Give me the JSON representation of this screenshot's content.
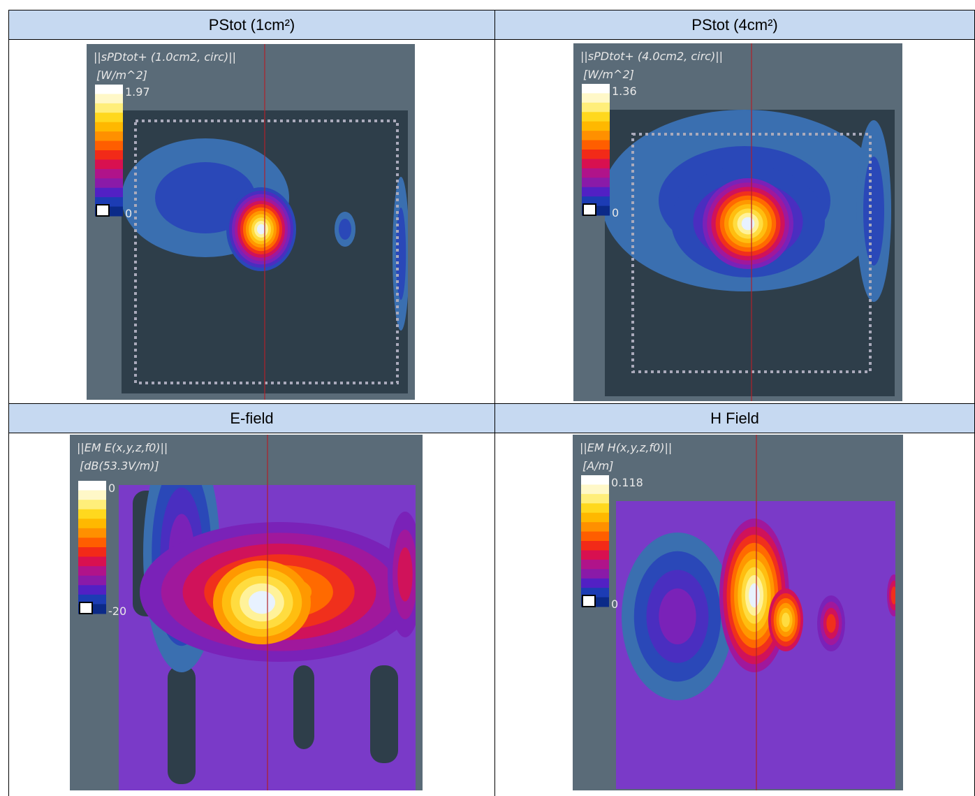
{
  "table": {
    "headers": [
      [
        "PStot (1cm²)",
        "PStot (4cm²)"
      ],
      [
        "E-field",
        "H Field"
      ]
    ],
    "panels": [
      {
        "title": "||sPDtot+ (1.0cm2, circ)||",
        "unit": "[W/m^2]",
        "max": "1.97",
        "min": "0"
      },
      {
        "title": "||sPDtot+ (4.0cm2, circ)||",
        "unit": "[W/m^2]",
        "max": "1.36",
        "min": "0"
      },
      {
        "title": "||EM E(x,y,z,f0)||",
        "unit": "[dB(53.3V/m)]",
        "max": "0",
        "min": "-20"
      },
      {
        "title": "||EM H(x,y,z,f0)||",
        "unit": "[A/m]",
        "max": "0.118",
        "min": "0"
      }
    ]
  }
}
